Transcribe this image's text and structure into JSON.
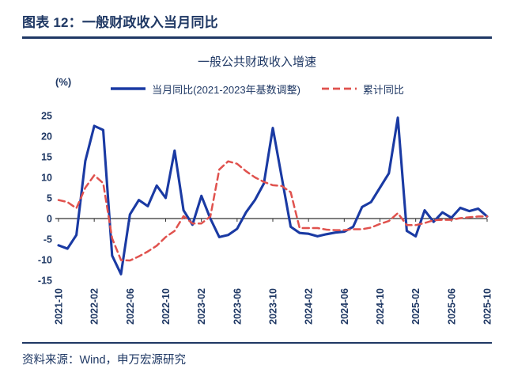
{
  "header": {
    "title": "图表 12：一般财政收入当月同比"
  },
  "footer": {
    "source": "资料来源：Wind，申万宏源研究"
  },
  "colors": {
    "navy": "#1f3864",
    "axis": "#333333"
  },
  "chart_data": {
    "type": "line",
    "title": "一般公共财政收入增速",
    "unit_label": "(%)",
    "ylim": [
      -15,
      25
    ],
    "y_step": 5,
    "x_tick_every": 4,
    "grid": false,
    "legend_position": "top",
    "x": [
      "2021-10",
      "2021-11",
      "2021-12",
      "2022-01",
      "2022-02",
      "2022-03",
      "2022-04",
      "2022-05",
      "2022-06",
      "2022-07",
      "2022-08",
      "2022-09",
      "2022-10",
      "2022-11",
      "2022-12",
      "2023-01",
      "2023-02",
      "2023-03",
      "2023-04",
      "2023-05",
      "2023-06",
      "2023-07",
      "2023-08",
      "2023-09",
      "2023-10",
      "2023-11",
      "2023-12",
      "2024-01",
      "2024-02",
      "2024-03",
      "2024-04",
      "2024-05",
      "2024-06",
      "2024-07",
      "2024-08",
      "2024-09",
      "2024-10",
      "2024-11",
      "2024-12",
      "2025-01",
      "2025-02",
      "2025-03",
      "2025-04",
      "2025-05",
      "2025-06",
      "2025-07",
      "2025-08",
      "2025-09",
      "2025-10"
    ],
    "series": [
      {
        "name": "当月同比(2021-2023年基数调整)",
        "style": "solid",
        "color": "#1a3aa3",
        "values": [
          -6.5,
          -7.3,
          -4.0,
          14.0,
          22.5,
          21.5,
          -9.0,
          -13.5,
          1.0,
          4.5,
          3.0,
          8.0,
          5.0,
          16.5,
          2.0,
          -1.5,
          5.5,
          0.0,
          -4.5,
          -4.0,
          -2.5,
          1.5,
          4.5,
          8.5,
          22.0,
          10.0,
          -2.0,
          -3.5,
          -3.7,
          -4.3,
          -3.8,
          -3.4,
          -3.2,
          -2.0,
          2.8,
          4.0,
          7.5,
          11.0,
          24.5,
          -3.0,
          -4.3,
          2.0,
          -0.8,
          1.5,
          0.2,
          2.6,
          1.8,
          2.4,
          0.5
        ]
      },
      {
        "name": "累计同比",
        "style": "dashed",
        "color": "#e0524e",
        "values": [
          4.5,
          4.0,
          2.5,
          7.5,
          10.5,
          8.6,
          -4.8,
          -10.1,
          -10.2,
          -9.2,
          -8.0,
          -6.6,
          -4.5,
          -3.0,
          0.6,
          -1.2,
          -1.2,
          0.5,
          11.9,
          13.9,
          13.3,
          11.5,
          10.0,
          8.9,
          8.1,
          7.9,
          6.4,
          -2.3,
          -2.3,
          -2.3,
          -2.7,
          -2.8,
          -2.8,
          -2.6,
          -2.6,
          -2.2,
          -1.3,
          -0.6,
          1.3,
          -1.6,
          -1.6,
          -1.1,
          -0.4,
          -0.3,
          -0.3,
          0.1,
          0.3,
          0.5,
          0.5
        ]
      }
    ]
  }
}
